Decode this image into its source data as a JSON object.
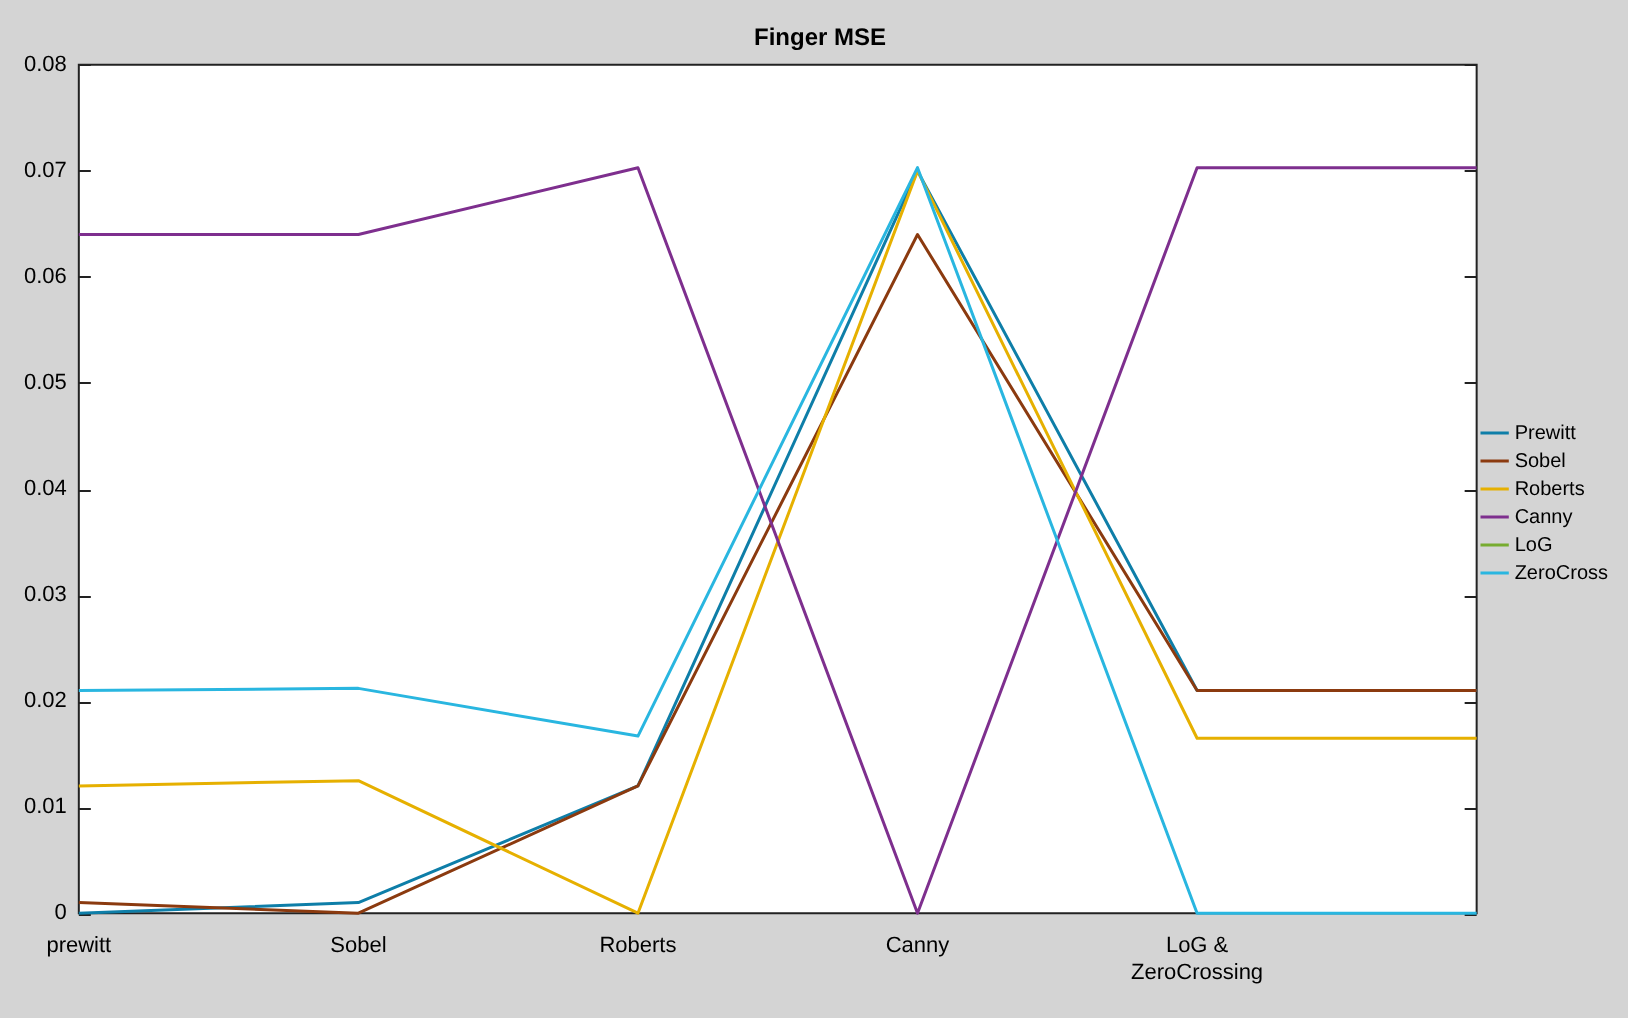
{
  "chart_data": {
    "type": "line",
    "title": "Finger MSE",
    "categories": [
      "prewitt",
      "Sobel",
      "Roberts",
      "Canny",
      "LoG & ZeroCrossing",
      null
    ],
    "series": [
      {
        "name": "Prewitt",
        "color": "#0e7ea8",
        "values": [
          0,
          0.001,
          0.012,
          0.07,
          0.021,
          0.021
        ]
      },
      {
        "name": "Sobel",
        "color": "#8b3a0f",
        "values": [
          0.001,
          0,
          0.012,
          0.064,
          0.021,
          0.021
        ]
      },
      {
        "name": "Roberts",
        "color": "#e6b000",
        "values": [
          0.012,
          0.0125,
          0,
          0.07,
          0.0165,
          0.0165
        ]
      },
      {
        "name": "Canny",
        "color": "#7e2f8e",
        "values": [
          0.064,
          0.064,
          0.0703,
          0,
          0.0703,
          0.0703
        ]
      },
      {
        "name": "LoG",
        "color": "#77ac30",
        "values": [
          null,
          null,
          null,
          null,
          null,
          null
        ]
      },
      {
        "name": "ZeroCross",
        "color": "#29b6e0",
        "values": [
          0.021,
          0.0212,
          0.0167,
          0.0703,
          0,
          0
        ]
      }
    ],
    "ylim": [
      0,
      0.08
    ],
    "yticks": [
      0,
      0.01,
      0.02,
      0.03,
      0.04,
      0.05,
      0.06,
      0.07,
      0.08
    ],
    "grid": false,
    "legend": "right",
    "marker": "none",
    "line_style": "solid"
  }
}
